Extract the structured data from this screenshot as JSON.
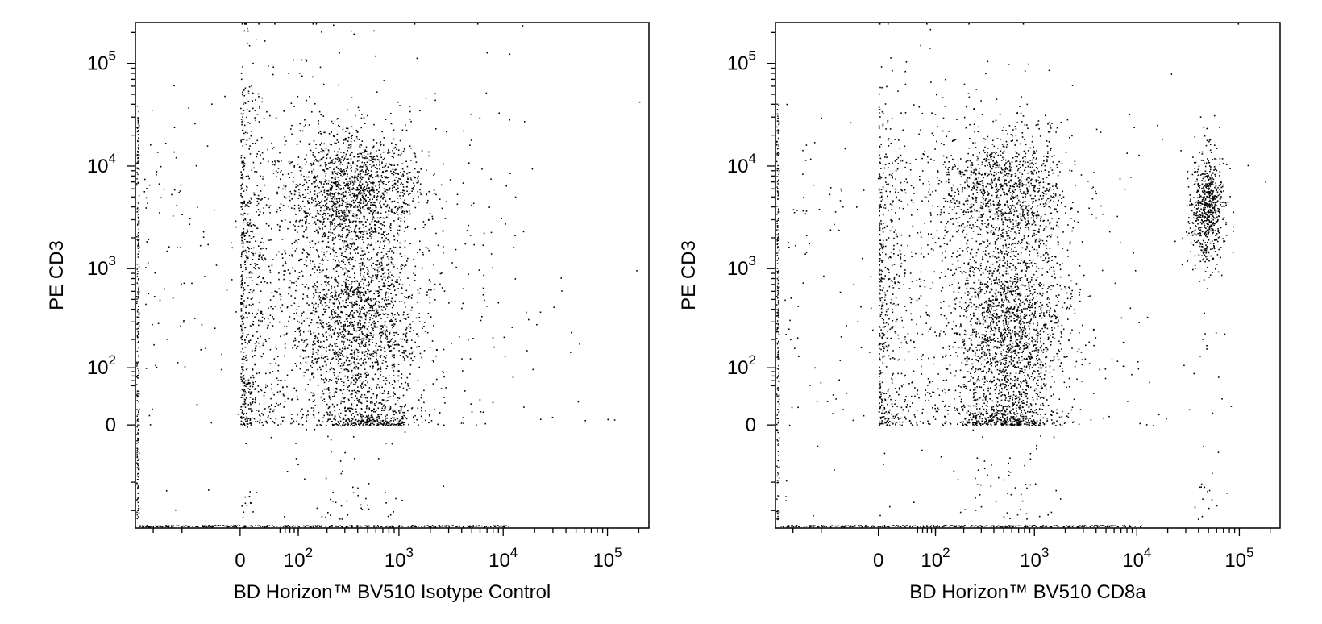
{
  "chart_data": [
    {
      "type": "scatter",
      "xlabel": "BD Horizon™ BV510 Isotype Control",
      "ylabel": "PE CD3",
      "x_scale": "biexponential",
      "y_scale": "biexponential",
      "xlim": [
        -300,
        250000
      ],
      "ylim": [
        -300,
        250000
      ],
      "grid": false,
      "x_ticks": [
        {
          "value": 0,
          "label": "0"
        },
        {
          "value": 100,
          "base": "10",
          "exp": "2"
        },
        {
          "value": 1000,
          "base": "10",
          "exp": "3"
        },
        {
          "value": 10000,
          "base": "10",
          "exp": "4"
        },
        {
          "value": 100000,
          "base": "10",
          "exp": "5"
        }
      ],
      "y_ticks": [
        {
          "value": 0,
          "label": "0"
        },
        {
          "value": 100,
          "base": "10",
          "exp": "2"
        },
        {
          "value": 1000,
          "base": "10",
          "exp": "3"
        },
        {
          "value": 10000,
          "base": "10",
          "exp": "4"
        },
        {
          "value": 100000,
          "base": "10",
          "exp": "5"
        }
      ],
      "populations": [
        {
          "x": 400,
          "y": 6000,
          "sx": 0.32,
          "sy": 0.28,
          "n": 1400
        },
        {
          "x": 400,
          "y": 400,
          "sx": 0.3,
          "sy": 0.42,
          "n": 1300
        },
        {
          "x": 500,
          "y": 30,
          "sx": 0.25,
          "sy": 0.9,
          "n": 700
        },
        {
          "x": 40,
          "y": 3000,
          "sx": 0.9,
          "sy": 0.8,
          "n": 700
        },
        {
          "x": 40,
          "y": 150,
          "sx": 0.9,
          "sy": 0.9,
          "n": 650
        },
        {
          "x": 3000,
          "y": 800,
          "sx": 0.7,
          "sy": 1.2,
          "n": 150
        }
      ]
    },
    {
      "type": "scatter",
      "xlabel": "BD Horizon™ BV510 CD8a",
      "ylabel": "PE CD3",
      "x_scale": "biexponential",
      "y_scale": "biexponential",
      "xlim": [
        -300,
        250000
      ],
      "ylim": [
        -300,
        250000
      ],
      "grid": false,
      "x_ticks": [
        {
          "value": 0,
          "label": "0"
        },
        {
          "value": 100,
          "base": "10",
          "exp": "2"
        },
        {
          "value": 1000,
          "base": "10",
          "exp": "3"
        },
        {
          "value": 10000,
          "base": "10",
          "exp": "4"
        },
        {
          "value": 100000,
          "base": "10",
          "exp": "5"
        }
      ],
      "y_ticks": [
        {
          "value": 0,
          "label": "0"
        },
        {
          "value": 100,
          "base": "10",
          "exp": "2"
        },
        {
          "value": 1000,
          "base": "10",
          "exp": "3"
        },
        {
          "value": 10000,
          "base": "10",
          "exp": "4"
        },
        {
          "value": 100000,
          "base": "10",
          "exp": "5"
        }
      ],
      "populations": [
        {
          "x": 500,
          "y": 6000,
          "sx": 0.3,
          "sy": 0.3,
          "n": 1100
        },
        {
          "x": 600,
          "y": 350,
          "sx": 0.28,
          "sy": 0.45,
          "n": 1400
        },
        {
          "x": 500,
          "y": 30,
          "sx": 0.25,
          "sy": 0.9,
          "n": 800
        },
        {
          "x": 48000,
          "y": 4000,
          "sx": 0.08,
          "sy": 0.28,
          "n": 700
        },
        {
          "x": 30,
          "y": 3000,
          "sx": 0.9,
          "sy": 0.8,
          "n": 450
        },
        {
          "x": 30,
          "y": 120,
          "sx": 0.9,
          "sy": 0.9,
          "n": 500
        },
        {
          "x": 3000,
          "y": 800,
          "sx": 0.8,
          "sy": 1.2,
          "n": 120
        }
      ]
    }
  ]
}
